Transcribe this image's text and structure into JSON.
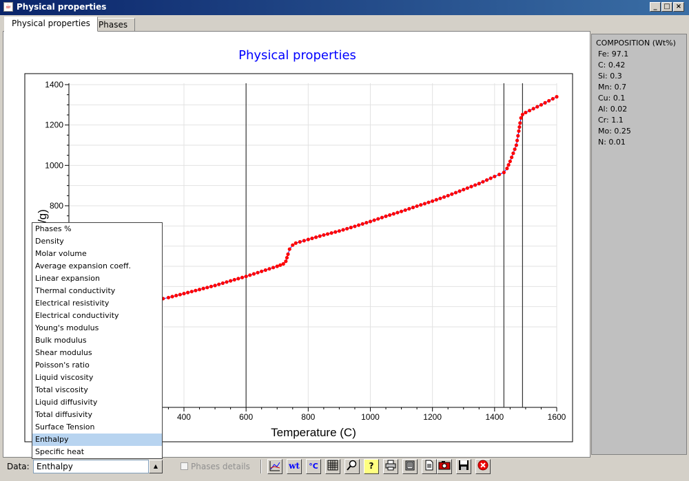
{
  "window": {
    "title": "Physical properties",
    "buttons": [
      "_",
      "□",
      "×"
    ]
  },
  "tabs": [
    {
      "label": "Physical properties"
    },
    {
      "label": "Phases"
    }
  ],
  "composition": {
    "title": "COMPOSITION (Wt%)",
    "items": [
      "Fe: 97.1",
      "C: 0.42",
      "Si: 0.3",
      "Mn: 0.7",
      "Cu: 0.1",
      "Al: 0.02",
      "Cr: 1.1",
      "Mo: 0.25",
      "N: 0.01"
    ]
  },
  "dropdown": {
    "options": [
      "Phases %",
      "Density",
      "Molar volume",
      "Average expansion coeff.",
      "Linear expansion",
      "Thermal conductivity",
      "Electrical resistivity",
      "Electrical conductivity",
      "Young's modulus",
      "Bulk modulus",
      "Shear modulus",
      "Poisson's ratio",
      "Liquid viscosity",
      "Total viscosity",
      "Liquid diffusivity",
      "Total diffusivity",
      "Surface Tension",
      "Enthalpy",
      "Specific heat"
    ],
    "selected_index": 17
  },
  "statusbar": {
    "data_label": "Data:",
    "selected_value": "Enthalpy",
    "combo_arrow": "▲",
    "phases_details": "Phases details",
    "toolbar_icons": [
      "axes-icon",
      "wt-icon",
      "celsius-icon",
      "grid-icon",
      "zoom-icon",
      "help-icon",
      "print-icon",
      "clipboard-icon",
      "document-icon",
      "camera-icon",
      "save-icon",
      "close-icon"
    ],
    "toolbar_glyphs": {
      "wt": "wt",
      "celsius": "°C",
      "help": "?"
    }
  },
  "chart_data": {
    "type": "scatter",
    "title": "Physical properties",
    "xlabel": "Temperature (C)",
    "ylabel_visible": "/g)",
    "xlim": [
      200,
      1600
    ],
    "ylim": [
      0,
      1400
    ],
    "xticks": [
      400,
      600,
      800,
      1000,
      1200,
      1400,
      1600
    ],
    "yticks": [
      800,
      1000,
      1200,
      1400
    ],
    "grid": true,
    "vertical_lines": [
      600,
      1430,
      1490
    ],
    "series": [
      {
        "color": "#ff0000",
        "line_color": "#0000ff",
        "points": [
          [
            333,
            340
          ],
          [
            350,
            345
          ],
          [
            400,
            365
          ],
          [
            450,
            385
          ],
          [
            500,
            405
          ],
          [
            550,
            428
          ],
          [
            600,
            450
          ],
          [
            650,
            475
          ],
          [
            700,
            500
          ],
          [
            720,
            512
          ],
          [
            728,
            525
          ],
          [
            735,
            560
          ],
          [
            740,
            585
          ],
          [
            750,
            605
          ],
          [
            760,
            615
          ],
          [
            800,
            633
          ],
          [
            850,
            655
          ],
          [
            900,
            675
          ],
          [
            950,
            698
          ],
          [
            1000,
            722
          ],
          [
            1050,
            748
          ],
          [
            1100,
            772
          ],
          [
            1150,
            798
          ],
          [
            1200,
            823
          ],
          [
            1250,
            850
          ],
          [
            1300,
            880
          ],
          [
            1350,
            910
          ],
          [
            1400,
            945
          ],
          [
            1430,
            965
          ],
          [
            1440,
            985
          ],
          [
            1450,
            1020
          ],
          [
            1460,
            1060
          ],
          [
            1470,
            1100
          ],
          [
            1478,
            1170
          ],
          [
            1482,
            1210
          ],
          [
            1485,
            1235
          ],
          [
            1490,
            1252
          ],
          [
            1500,
            1262
          ],
          [
            1550,
            1300
          ],
          [
            1600,
            1340
          ]
        ]
      }
    ]
  }
}
